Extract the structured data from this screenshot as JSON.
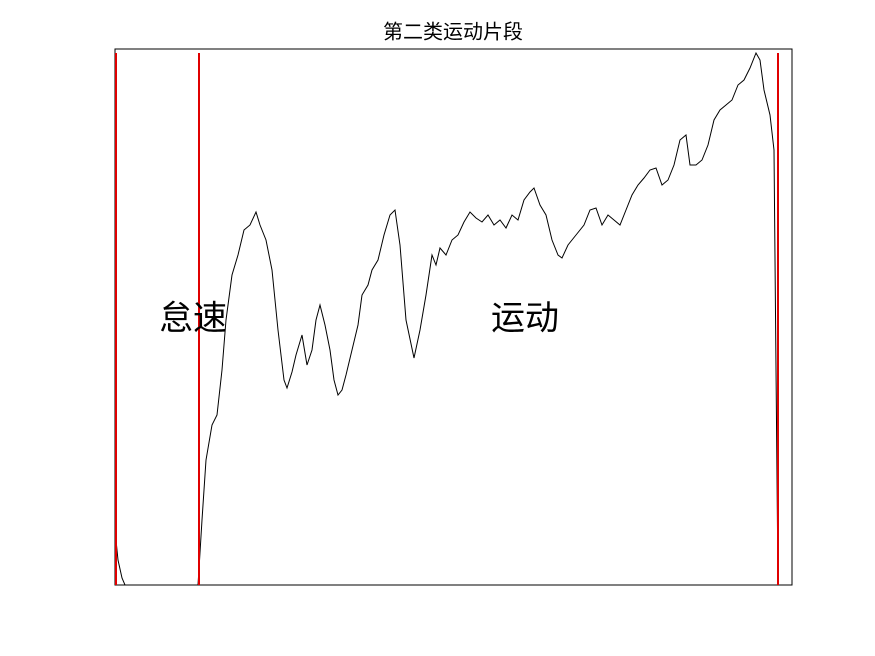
{
  "chart_data": {
    "type": "line",
    "title": "第二类运动片段",
    "annotations": [
      "怠速",
      "运动"
    ],
    "x": [
      0,
      3,
      7,
      10,
      83,
      87,
      91,
      97,
      102,
      107,
      111,
      117,
      123,
      129,
      135,
      141,
      145,
      151,
      157,
      163,
      169,
      172,
      177,
      181,
      187,
      192,
      197,
      201,
      205,
      210,
      215,
      219,
      223,
      227,
      231,
      237,
      243,
      247,
      253,
      257,
      263,
      269,
      275,
      280,
      285,
      291,
      299,
      305,
      311,
      317,
      321,
      325,
      331,
      337,
      343,
      349,
      355,
      361,
      367,
      373,
      379,
      385,
      391,
      397,
      403,
      409,
      415,
      419,
      425,
      431,
      437,
      443,
      447,
      453,
      461,
      469,
      475,
      481,
      487,
      493,
      499,
      505,
      511,
      517,
      523,
      529,
      535,
      541,
      547,
      553,
      559,
      565,
      571,
      575,
      581,
      587,
      593,
      599,
      605,
      611,
      617,
      623,
      629,
      635,
      641,
      645,
      649,
      655,
      659,
      663
    ],
    "values": [
      55,
      25,
      7,
      0,
      0,
      65,
      125,
      160,
      170,
      215,
      265,
      310,
      330,
      355,
      360,
      373,
      360,
      345,
      315,
      255,
      205,
      197,
      213,
      230,
      250,
      220,
      235,
      265,
      280,
      260,
      235,
      205,
      190,
      195,
      210,
      235,
      260,
      290,
      300,
      315,
      325,
      350,
      370,
      375,
      340,
      265,
      227,
      255,
      290,
      330,
      320,
      337,
      330,
      345,
      350,
      363,
      373,
      367,
      363,
      370,
      360,
      365,
      357,
      370,
      365,
      385,
      393,
      397,
      380,
      370,
      345,
      330,
      327,
      340,
      350,
      360,
      375,
      377,
      360,
      370,
      365,
      360,
      375,
      390,
      400,
      407,
      415,
      417,
      400,
      405,
      420,
      445,
      450,
      420,
      420,
      425,
      440,
      465,
      475,
      480,
      485,
      500,
      505,
      517,
      532,
      525,
      495,
      470,
      435,
      0
    ],
    "color": "#000000",
    "vlines": [
      1,
      84,
      663
    ],
    "vline_color": "#e00000",
    "xlim": [
      0,
      677
    ],
    "ylim": [
      0,
      536
    ],
    "grid": false
  }
}
